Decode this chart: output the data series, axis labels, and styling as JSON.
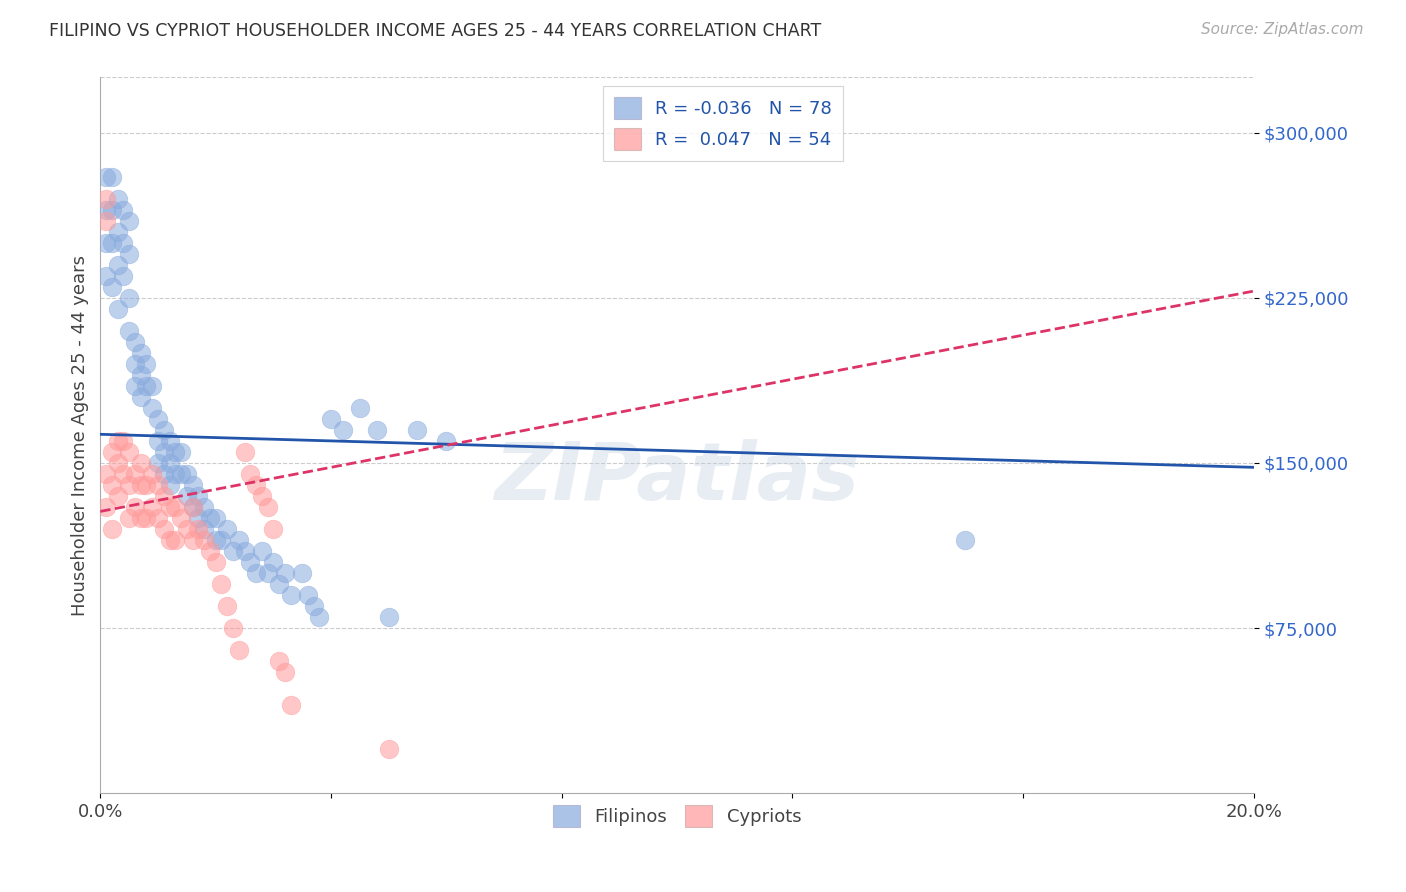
{
  "title": "FILIPINO VS CYPRIOT HOUSEHOLDER INCOME AGES 25 - 44 YEARS CORRELATION CHART",
  "source": "Source: ZipAtlas.com",
  "ylabel": "Householder Income Ages 25 - 44 years",
  "xlim": [
    0.0,
    0.2
  ],
  "ylim": [
    0,
    325000
  ],
  "yticks": [
    75000,
    150000,
    225000,
    300000
  ],
  "ytick_labels": [
    "$75,000",
    "$150,000",
    "$225,000",
    "$300,000"
  ],
  "xticks": [
    0.0,
    0.04,
    0.08,
    0.12,
    0.16,
    0.2
  ],
  "xtick_labels": [
    "0.0%",
    "",
    "",
    "",
    "",
    "20.0%"
  ],
  "filipino_R": "-0.036",
  "filipino_N": "78",
  "cypriot_R": "0.047",
  "cypriot_N": "54",
  "filipino_color": "#88AADD",
  "cypriot_color": "#FF9999",
  "trend_filipino_color": "#2255AA",
  "trend_cypriot_color": "#DD3366",
  "watermark": "ZIPatlas",
  "filipino_trend_x0": 0.0,
  "filipino_trend_y0": 163000,
  "filipino_trend_x1": 0.2,
  "filipino_trend_y1": 148000,
  "cypriot_trend_x0": 0.0,
  "cypriot_trend_y0": 128000,
  "cypriot_trend_x1": 0.2,
  "cypriot_trend_y1": 228000,
  "filipino_x": [
    0.001,
    0.001,
    0.001,
    0.001,
    0.002,
    0.002,
    0.002,
    0.002,
    0.003,
    0.003,
    0.003,
    0.003,
    0.004,
    0.004,
    0.004,
    0.005,
    0.005,
    0.005,
    0.005,
    0.006,
    0.006,
    0.006,
    0.007,
    0.007,
    0.007,
    0.008,
    0.008,
    0.009,
    0.009,
    0.01,
    0.01,
    0.01,
    0.011,
    0.011,
    0.011,
    0.012,
    0.012,
    0.012,
    0.013,
    0.013,
    0.014,
    0.014,
    0.015,
    0.015,
    0.016,
    0.016,
    0.017,
    0.017,
    0.018,
    0.018,
    0.019,
    0.02,
    0.02,
    0.021,
    0.022,
    0.023,
    0.024,
    0.025,
    0.026,
    0.027,
    0.028,
    0.029,
    0.03,
    0.031,
    0.032,
    0.033,
    0.035,
    0.036,
    0.037,
    0.038,
    0.04,
    0.042,
    0.045,
    0.048,
    0.05,
    0.055,
    0.06,
    0.15
  ],
  "filipino_y": [
    280000,
    265000,
    250000,
    235000,
    280000,
    265000,
    250000,
    230000,
    270000,
    255000,
    240000,
    220000,
    265000,
    250000,
    235000,
    260000,
    245000,
    225000,
    210000,
    205000,
    195000,
    185000,
    200000,
    190000,
    180000,
    195000,
    185000,
    185000,
    175000,
    170000,
    160000,
    150000,
    165000,
    155000,
    145000,
    160000,
    150000,
    140000,
    155000,
    145000,
    155000,
    145000,
    145000,
    135000,
    140000,
    130000,
    135000,
    125000,
    130000,
    120000,
    125000,
    125000,
    115000,
    115000,
    120000,
    110000,
    115000,
    110000,
    105000,
    100000,
    110000,
    100000,
    105000,
    95000,
    100000,
    90000,
    100000,
    90000,
    85000,
    80000,
    170000,
    165000,
    175000,
    165000,
    80000,
    165000,
    160000,
    115000
  ],
  "cypriot_x": [
    0.001,
    0.001,
    0.001,
    0.001,
    0.002,
    0.002,
    0.002,
    0.003,
    0.003,
    0.003,
    0.004,
    0.004,
    0.005,
    0.005,
    0.005,
    0.006,
    0.006,
    0.007,
    0.007,
    0.007,
    0.008,
    0.008,
    0.009,
    0.009,
    0.01,
    0.01,
    0.011,
    0.011,
    0.012,
    0.012,
    0.013,
    0.013,
    0.014,
    0.015,
    0.016,
    0.016,
    0.017,
    0.018,
    0.019,
    0.02,
    0.021,
    0.022,
    0.023,
    0.024,
    0.025,
    0.026,
    0.027,
    0.028,
    0.029,
    0.03,
    0.031,
    0.032,
    0.033,
    0.05
  ],
  "cypriot_y": [
    270000,
    260000,
    145000,
    130000,
    155000,
    140000,
    120000,
    160000,
    150000,
    135000,
    160000,
    145000,
    155000,
    140000,
    125000,
    145000,
    130000,
    150000,
    140000,
    125000,
    140000,
    125000,
    145000,
    130000,
    140000,
    125000,
    135000,
    120000,
    130000,
    115000,
    130000,
    115000,
    125000,
    120000,
    130000,
    115000,
    120000,
    115000,
    110000,
    105000,
    95000,
    85000,
    75000,
    65000,
    155000,
    145000,
    140000,
    135000,
    130000,
    120000,
    60000,
    55000,
    40000,
    20000
  ]
}
